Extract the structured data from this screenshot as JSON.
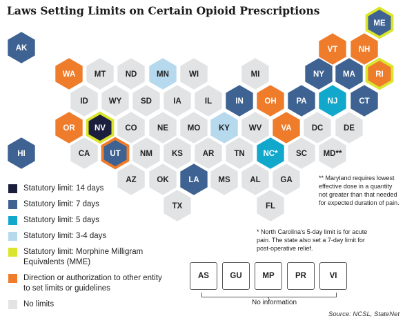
{
  "title": "Laws Setting Limits on Certain Opioid Prescriptions",
  "colors": {
    "days14": "#1b1f3d",
    "days7": "#3e6393",
    "days5": "#11a8cc",
    "days3_4": "#b6d9ee",
    "mme": "#dbe52c",
    "direction": "#ef7c2b",
    "none": "#e2e3e5"
  },
  "legend": [
    {
      "key": "days14",
      "label": "Statutory limit: 14 days"
    },
    {
      "key": "days7",
      "label": "Statutory limit: 7 days"
    },
    {
      "key": "days5",
      "label": "Statutory limit: 5 days"
    },
    {
      "key": "days3_4",
      "label": "Statutory limit: 3-4 days"
    },
    {
      "key": "mme",
      "label": "Statutory limit: Morphine Milligram Equivalents (MME)"
    },
    {
      "key": "direction",
      "label": "Direction or authorization to other entity to set limits or guidelines"
    },
    {
      "key": "none",
      "label": "No limits"
    }
  ],
  "states": [
    {
      "abbr": "AK",
      "fill": "days7"
    },
    {
      "abbr": "ME",
      "fill": "days7",
      "mme": true
    },
    {
      "abbr": "VT",
      "fill": "direction"
    },
    {
      "abbr": "NH",
      "fill": "direction"
    },
    {
      "abbr": "WA",
      "fill": "direction"
    },
    {
      "abbr": "MT",
      "fill": "none"
    },
    {
      "abbr": "ND",
      "fill": "none"
    },
    {
      "abbr": "MN",
      "fill": "days3_4"
    },
    {
      "abbr": "WI",
      "fill": "none"
    },
    {
      "abbr": "MI",
      "fill": "none"
    },
    {
      "abbr": "NY",
      "fill": "days7"
    },
    {
      "abbr": "MA",
      "fill": "days7"
    },
    {
      "abbr": "RI",
      "fill": "direction",
      "mme": true
    },
    {
      "abbr": "ID",
      "fill": "none"
    },
    {
      "abbr": "WY",
      "fill": "none"
    },
    {
      "abbr": "SD",
      "fill": "none"
    },
    {
      "abbr": "IA",
      "fill": "none"
    },
    {
      "abbr": "IL",
      "fill": "none"
    },
    {
      "abbr": "IN",
      "fill": "days7"
    },
    {
      "abbr": "OH",
      "fill": "direction"
    },
    {
      "abbr": "PA",
      "fill": "days7"
    },
    {
      "abbr": "NJ",
      "fill": "days5"
    },
    {
      "abbr": "CT",
      "fill": "days7"
    },
    {
      "abbr": "OR",
      "fill": "direction"
    },
    {
      "abbr": "NV",
      "fill": "days14",
      "mme": true
    },
    {
      "abbr": "CO",
      "fill": "none"
    },
    {
      "abbr": "NE",
      "fill": "none"
    },
    {
      "abbr": "MO",
      "fill": "none"
    },
    {
      "abbr": "KY",
      "fill": "days3_4"
    },
    {
      "abbr": "WV",
      "fill": "none"
    },
    {
      "abbr": "VA",
      "fill": "direction"
    },
    {
      "abbr": "DC",
      "fill": "none"
    },
    {
      "abbr": "DE",
      "fill": "none"
    },
    {
      "abbr": "HI",
      "fill": "days7"
    },
    {
      "abbr": "CA",
      "fill": "none"
    },
    {
      "abbr": "UT",
      "fill": "days7",
      "direction_outline": true
    },
    {
      "abbr": "NM",
      "fill": "none"
    },
    {
      "abbr": "KS",
      "fill": "none"
    },
    {
      "abbr": "AR",
      "fill": "none"
    },
    {
      "abbr": "TN",
      "fill": "none"
    },
    {
      "abbr": "NC*",
      "fill": "days5"
    },
    {
      "abbr": "SC",
      "fill": "none"
    },
    {
      "abbr": "MD**",
      "fill": "none"
    },
    {
      "abbr": "AZ",
      "fill": "none"
    },
    {
      "abbr": "OK",
      "fill": "none"
    },
    {
      "abbr": "LA",
      "fill": "days7"
    },
    {
      "abbr": "MS",
      "fill": "none"
    },
    {
      "abbr": "AL",
      "fill": "none"
    },
    {
      "abbr": "GA",
      "fill": "none"
    },
    {
      "abbr": "TX",
      "fill": "none"
    },
    {
      "abbr": "FL",
      "fill": "none"
    }
  ],
  "notes": {
    "maryland": "** Maryland requires lowest effective dose in a quantity not greater than that needed for expected duration of pain.",
    "north_carolina": "* North Carolina's 5-day limit is for acute pain. The state also set a 7-day limit for post-operative relief."
  },
  "territories": [
    "AS",
    "GU",
    "MP",
    "PR",
    "VI"
  ],
  "territories_label": "No information",
  "source": "Source: NCSL, StateNet"
}
